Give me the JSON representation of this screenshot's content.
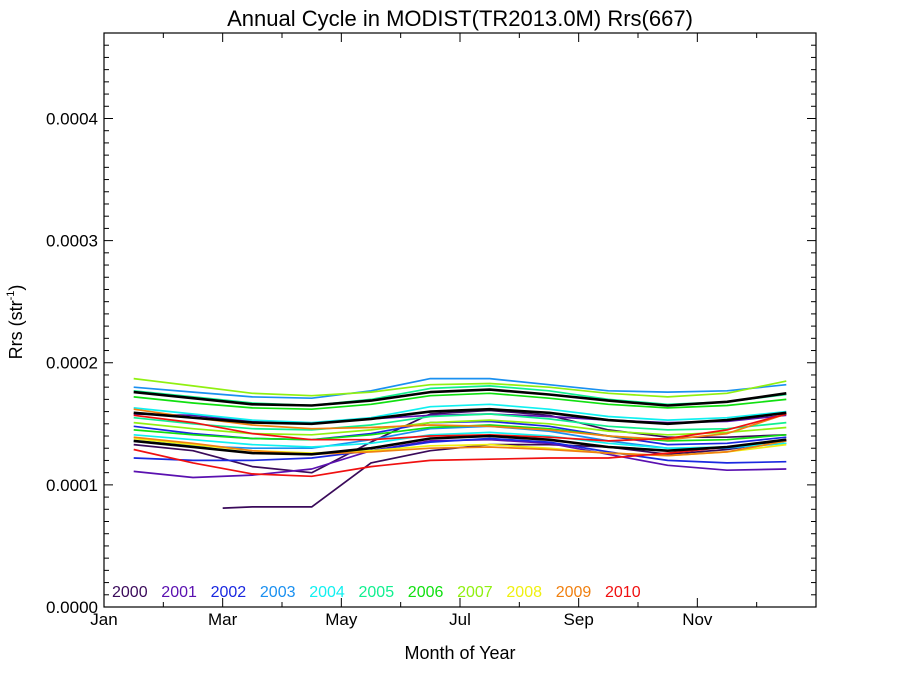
{
  "chart_data": {
    "type": "line",
    "title": "Annual Cycle in MODIST(TR2013.0M) Rrs(667)",
    "xlabel": "Month of Year",
    "ylabel": "Rrs (str",
    "ylabel_exponent": "-1",
    "ylabel_suffix": ")",
    "xlim": [
      0.5,
      12.5
    ],
    "ylim": [
      0,
      0.00047
    ],
    "x_ticks": [
      {
        "value": 0.5,
        "label": "Jan"
      },
      {
        "value": 2.5,
        "label": "Mar"
      },
      {
        "value": 4.5,
        "label": "May"
      },
      {
        "value": 6.5,
        "label": "Jul"
      },
      {
        "value": 8.5,
        "label": "Sep"
      },
      {
        "value": 10.5,
        "label": "Nov"
      }
    ],
    "y_ticks": [
      {
        "value": 0.0,
        "label": "0.0000"
      },
      {
        "value": 0.0001,
        "label": "0.0001"
      },
      {
        "value": 0.0002,
        "label": "0.0002"
      },
      {
        "value": 0.0003,
        "label": "0.0003"
      },
      {
        "value": 0.0004,
        "label": "0.0004"
      }
    ],
    "grid": false,
    "legend_position": "bottom-left inside plot",
    "legend": [
      {
        "label": "2000",
        "color": "#3a0a5a"
      },
      {
        "label": "2001",
        "color": "#5a10b0"
      },
      {
        "label": "2002",
        "color": "#1a28e0"
      },
      {
        "label": "2003",
        "color": "#1a90f0"
      },
      {
        "label": "2004",
        "color": "#10f0f0"
      },
      {
        "label": "2005",
        "color": "#10f090"
      },
      {
        "label": "2006",
        "color": "#10e010"
      },
      {
        "label": "2007",
        "color": "#90f010"
      },
      {
        "label": "2008",
        "color": "#f0f010"
      },
      {
        "label": "2009",
        "color": "#f08010"
      },
      {
        "label": "2010",
        "color": "#f01010"
      }
    ],
    "series": [
      {
        "color": "#3a0a5a",
        "x": [
          2.5,
          3.0,
          4.0,
          5.0,
          6.0,
          7.0,
          8.0,
          9.0,
          10.0,
          11.0,
          12.0
        ],
        "y": [
          8.1e-05,
          8.2e-05,
          8.2e-05,
          0.000118,
          0.000128,
          0.000133,
          0.000133,
          0.000131,
          0.000125,
          0.000129,
          0.000136
        ]
      },
      {
        "color": "#3a0a5a",
        "x": [
          1.0,
          2.0,
          3.0,
          4.0,
          5.0,
          6.0,
          7.0,
          8.0,
          9.0,
          10.0,
          11.0,
          12.0
        ],
        "y": [
          0.000133,
          0.000128,
          0.000115,
          0.00011,
          0.000135,
          0.000158,
          0.000161,
          0.000157,
          0.000145,
          0.000139,
          0.000139,
          0.000141
        ]
      },
      {
        "color": "#5a10b0",
        "x": [
          1.0,
          2.0,
          3.0,
          4.0,
          5.0,
          6.0,
          7.0,
          8.0,
          9.0,
          10.0,
          11.0,
          12.0
        ],
        "y": [
          0.000111,
          0.000106,
          0.000108,
          0.000113,
          0.000128,
          0.000136,
          0.000137,
          0.000134,
          0.000125,
          0.000116,
          0.000112,
          0.000113
        ]
      },
      {
        "color": "#5a10b0",
        "x": [
          1.0,
          2.0,
          3.0,
          4.0,
          5.0,
          6.0,
          7.0,
          8.0,
          9.0,
          10.0,
          11.0,
          12.0
        ],
        "y": [
          0.000158,
          0.000157,
          0.000152,
          0.00015,
          0.000154,
          0.000157,
          0.000158,
          0.000156,
          0.000153,
          0.000151,
          0.000152,
          0.000157
        ]
      },
      {
        "color": "#1a28e0",
        "x": [
          1.0,
          2.0,
          3.0,
          4.0,
          5.0,
          6.0,
          7.0,
          8.0,
          9.0,
          10.0,
          11.0,
          12.0
        ],
        "y": [
          0.000148,
          0.000142,
          0.000138,
          0.000137,
          0.000142,
          0.000151,
          0.000152,
          0.000148,
          0.00014,
          0.000133,
          0.000134,
          0.000139
        ]
      },
      {
        "color": "#1a28e0",
        "x": [
          1.0,
          2.0,
          3.0,
          4.0,
          5.0,
          6.0,
          7.0,
          8.0,
          9.0,
          10.0,
          11.0,
          12.0
        ],
        "y": [
          0.000122,
          0.00012,
          0.00012,
          0.000122,
          0.000128,
          0.000135,
          0.000138,
          0.000135,
          0.000127,
          0.00012,
          0.000118,
          0.000119
        ]
      },
      {
        "color": "#1a90f0",
        "x": [
          1.0,
          2.0,
          3.0,
          4.0,
          5.0,
          6.0,
          7.0,
          8.0,
          9.0,
          10.0,
          11.0,
          12.0
        ],
        "y": [
          0.00018,
          0.000176,
          0.000172,
          0.000171,
          0.000177,
          0.000187,
          0.000187,
          0.000182,
          0.000177,
          0.000176,
          0.000177,
          0.000182
        ]
      },
      {
        "color": "#1a90f0",
        "x": [
          1.0,
          2.0,
          3.0,
          4.0,
          5.0,
          6.0,
          7.0,
          8.0,
          9.0,
          10.0,
          11.0,
          12.0
        ],
        "y": [
          0.000136,
          0.000132,
          0.00013,
          0.00013,
          0.000137,
          0.000146,
          0.000148,
          0.000144,
          0.000136,
          0.00013,
          0.00013,
          0.000134
        ]
      },
      {
        "color": "#10f0f0",
        "x": [
          1.0,
          2.0,
          3.0,
          4.0,
          5.0,
          6.0,
          7.0,
          8.0,
          9.0,
          10.0,
          11.0,
          12.0
        ],
        "y": [
          0.000163,
          0.000158,
          0.000153,
          0.000151,
          0.000155,
          0.000164,
          0.000166,
          0.000162,
          0.000156,
          0.000153,
          0.000155,
          0.00016
        ]
      },
      {
        "color": "#10f0f0",
        "x": [
          1.0,
          2.0,
          3.0,
          4.0,
          5.0,
          6.0,
          7.0,
          8.0,
          9.0,
          10.0,
          11.0,
          12.0
        ],
        "y": [
          0.000141,
          0.000137,
          0.000133,
          0.000131,
          0.000134,
          0.000141,
          0.000143,
          0.00014,
          0.000134,
          0.00013,
          0.000131,
          0.000134
        ]
      },
      {
        "color": "#10f090",
        "x": [
          1.0,
          2.0,
          3.0,
          4.0,
          5.0,
          6.0,
          7.0,
          8.0,
          9.0,
          10.0,
          11.0,
          12.0
        ],
        "y": [
          0.000177,
          0.000172,
          0.000167,
          0.000165,
          0.00017,
          0.000179,
          0.000181,
          0.000177,
          0.00017,
          0.000166,
          0.000168,
          0.000174
        ]
      },
      {
        "color": "#10f090",
        "x": [
          1.0,
          2.0,
          3.0,
          4.0,
          5.0,
          6.0,
          7.0,
          8.0,
          9.0,
          10.0,
          11.0,
          12.0
        ],
        "y": [
          0.000155,
          0.00015,
          0.000146,
          0.000145,
          0.000149,
          0.000156,
          0.000158,
          0.000154,
          0.000148,
          0.000145,
          0.000146,
          0.000151
        ]
      },
      {
        "color": "#10e010",
        "x": [
          1.0,
          2.0,
          3.0,
          4.0,
          5.0,
          6.0,
          7.0,
          8.0,
          9.0,
          10.0,
          11.0,
          12.0
        ],
        "y": [
          0.000172,
          0.000167,
          0.000163,
          0.000162,
          0.000166,
          0.000173,
          0.000175,
          0.000171,
          0.000166,
          0.000163,
          0.000165,
          0.00017
        ]
      },
      {
        "color": "#10e010",
        "x": [
          1.0,
          2.0,
          3.0,
          4.0,
          5.0,
          6.0,
          7.0,
          8.0,
          9.0,
          10.0,
          11.0,
          12.0
        ],
        "y": [
          0.000145,
          0.000141,
          0.000138,
          0.000137,
          0.000141,
          0.000147,
          0.000149,
          0.000146,
          0.00014,
          0.000136,
          0.000137,
          0.000141
        ]
      },
      {
        "color": "#90f010",
        "x": [
          1.0,
          2.0,
          3.0,
          4.0,
          5.0,
          6.0,
          7.0,
          8.0,
          9.0,
          10.0,
          11.0,
          12.0
        ],
        "y": [
          0.000187,
          0.000181,
          0.000175,
          0.000173,
          0.000176,
          0.000182,
          0.000183,
          0.00018,
          0.000175,
          0.000172,
          0.000175,
          0.000185
        ]
      },
      {
        "color": "#90f010",
        "x": [
          1.0,
          2.0,
          3.0,
          4.0,
          5.0,
          6.0,
          7.0,
          8.0,
          9.0,
          10.0,
          11.0,
          12.0
        ],
        "y": [
          0.000151,
          0.000146,
          0.000142,
          0.000141,
          0.000145,
          0.000151,
          0.000153,
          0.00015,
          0.000144,
          0.000141,
          0.000143,
          0.000147
        ]
      },
      {
        "color": "#f0f010",
        "x": [
          1.0,
          2.0,
          3.0,
          4.0,
          5.0,
          6.0,
          7.0,
          8.0,
          9.0,
          10.0,
          11.0,
          12.0
        ],
        "y": [
          0.000138,
          0.000133,
          0.000128,
          0.000126,
          0.000128,
          0.000132,
          0.000133,
          0.00013,
          0.000126,
          0.000124,
          0.000127,
          0.000133
        ]
      },
      {
        "color": "#f08010",
        "x": [
          1.0,
          2.0,
          3.0,
          4.0,
          5.0,
          6.0,
          7.0,
          8.0,
          9.0,
          10.0,
          11.0,
          12.0
        ],
        "y": [
          0.000162,
          0.000155,
          0.000149,
          0.000146,
          0.000147,
          0.000149,
          0.000148,
          0.000145,
          0.00014,
          0.000137,
          0.000142,
          0.000158
        ]
      },
      {
        "color": "#f08010",
        "x": [
          1.0,
          2.0,
          3.0,
          4.0,
          5.0,
          6.0,
          7.0,
          8.0,
          9.0,
          10.0,
          11.0,
          12.0
        ],
        "y": [
          0.000139,
          0.000134,
          0.000128,
          0.000125,
          0.000127,
          0.00013,
          0.000131,
          0.000129,
          0.000126,
          0.000124,
          0.000127,
          0.000136
        ]
      },
      {
        "color": "#f01010",
        "x": [
          1.0,
          2.0,
          3.0,
          4.0,
          5.0,
          6.0,
          7.0,
          8.0,
          9.0,
          10.0,
          11.0,
          12.0
        ],
        "y": [
          0.000129,
          0.000118,
          0.000109,
          0.000107,
          0.000115,
          0.00012,
          0.000121,
          0.000122,
          0.000122,
          0.000126,
          0.000131,
          0.000137
        ]
      },
      {
        "color": "#f01010",
        "x": [
          1.0,
          2.0,
          3.0,
          4.0,
          5.0,
          6.0,
          7.0,
          8.0,
          9.0,
          10.0,
          11.0,
          12.0
        ],
        "y": [
          0.000157,
          0.000151,
          0.000142,
          0.000137,
          0.000137,
          0.00014,
          0.000141,
          0.000139,
          0.000136,
          0.000138,
          0.000145,
          0.000158
        ]
      },
      {
        "color": "#000000",
        "bold": true,
        "x": [
          1.0,
          2.0,
          3.0,
          4.0,
          5.0,
          6.0,
          7.0,
          8.0,
          9.0,
          10.0,
          11.0,
          12.0
        ],
        "y": [
          0.000176,
          0.000171,
          0.000166,
          0.000165,
          0.000169,
          0.000176,
          0.000178,
          0.000174,
          0.000169,
          0.000165,
          0.000168,
          0.000175
        ]
      },
      {
        "color": "#000000",
        "bold": true,
        "x": [
          1.0,
          2.0,
          3.0,
          4.0,
          5.0,
          6.0,
          7.0,
          8.0,
          9.0,
          10.0,
          11.0,
          12.0
        ],
        "y": [
          0.000159,
          0.000155,
          0.000151,
          0.00015,
          0.000154,
          0.00016,
          0.000162,
          0.000159,
          0.000153,
          0.00015,
          0.000153,
          0.000159
        ]
      },
      {
        "color": "#000000",
        "bold": true,
        "x": [
          1.0,
          2.0,
          3.0,
          4.0,
          5.0,
          6.0,
          7.0,
          8.0,
          9.0,
          10.0,
          11.0,
          12.0
        ],
        "y": [
          0.000136,
          0.000131,
          0.000126,
          0.000125,
          0.00013,
          0.000138,
          0.00014,
          0.000137,
          0.000131,
          0.000128,
          0.000131,
          0.000137
        ]
      }
    ]
  }
}
